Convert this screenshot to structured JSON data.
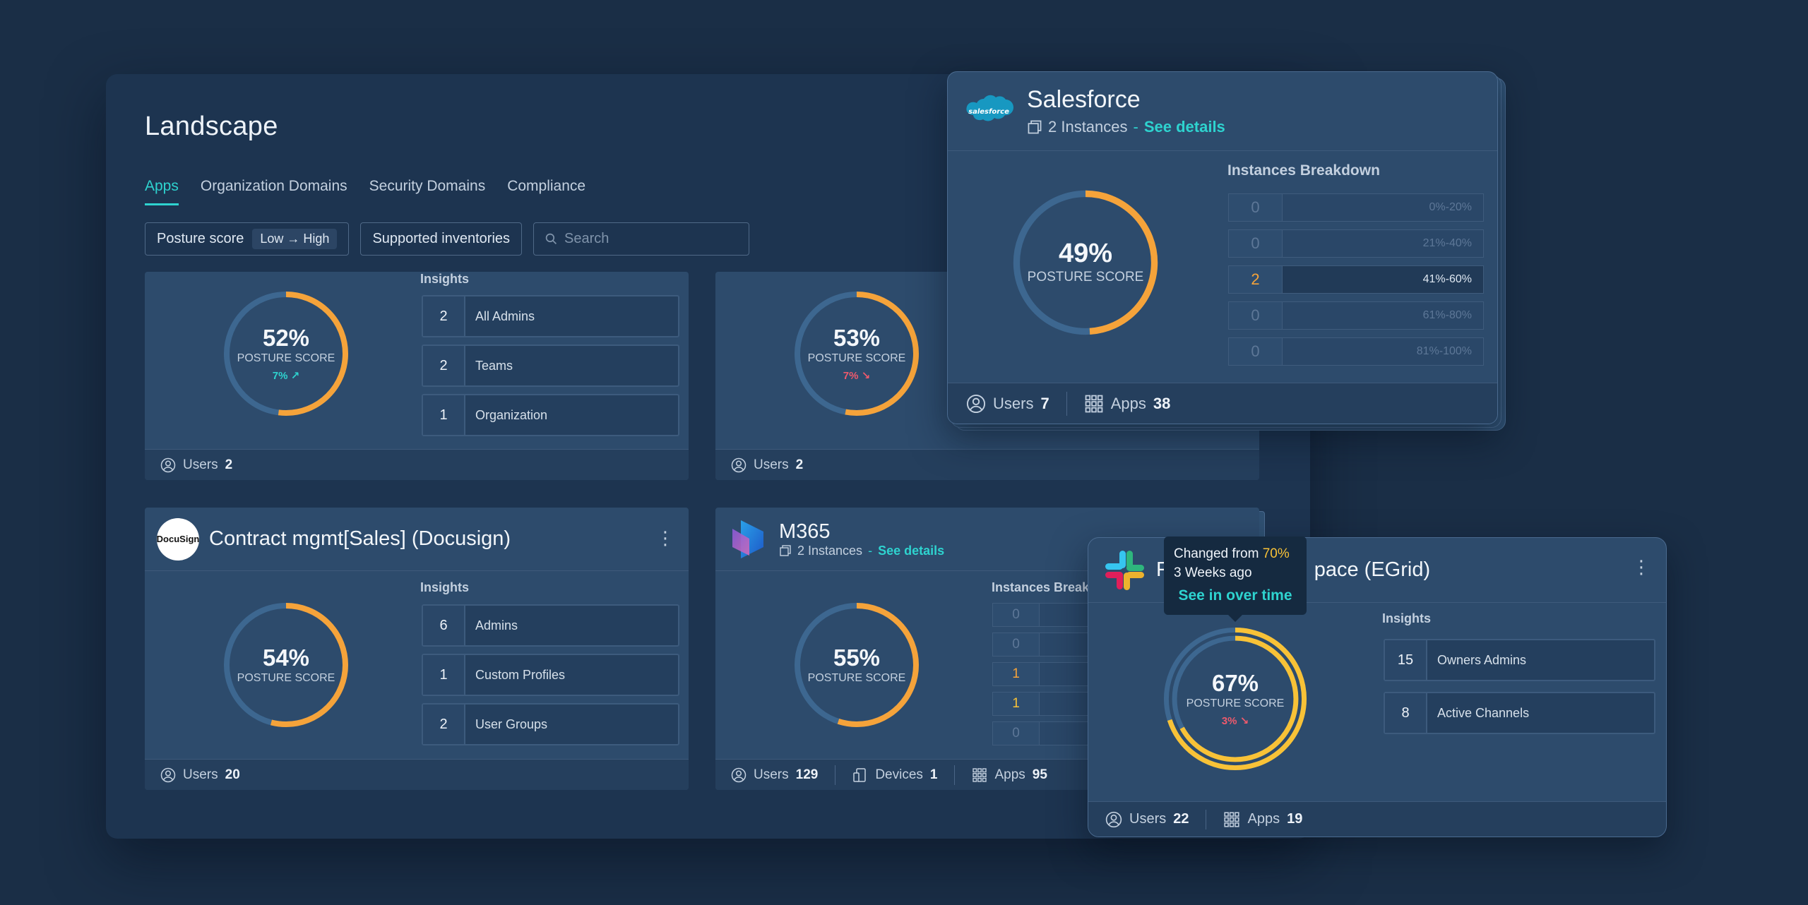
{
  "page": {
    "title": "Landscape",
    "tabs": [
      {
        "label": "Apps"
      },
      {
        "label": "Organization Domains"
      },
      {
        "label": "Security Domains"
      },
      {
        "label": "Compliance"
      }
    ],
    "filters": {
      "posture_label": "Posture score",
      "posture_chip": "Low → High",
      "supported": "Supported inventories",
      "search_placeholder": "Search"
    }
  },
  "colors": {
    "accent": "#2ed3cf",
    "gauge_track": "#3d6790",
    "gauge_orange": "#f5a33a",
    "gauge_yellow": "#f8c237",
    "delta_up": "#2ed3cf",
    "delta_down": "#ef5a6c"
  },
  "cards": {
    "c1": {
      "insights_title": "Insights",
      "score": 52,
      "pct": "52%",
      "label": "POSTURE SCORE",
      "delta": "7% ↗",
      "insights": [
        {
          "num": "2",
          "label": "All Admins"
        },
        {
          "num": "2",
          "label": "Teams"
        },
        {
          "num": "1",
          "label": "Organization"
        }
      ],
      "users_label": "Users",
      "users": "2"
    },
    "c2": {
      "score": 53,
      "pct": "53%",
      "label": "POSTURE SCORE",
      "delta": "7% ↘",
      "users_label": "Users",
      "users": "2"
    },
    "c3": {
      "title": "Contract mgmt[Sales] (Docusign)",
      "logo": "DocuSign",
      "insights_title": "Insights",
      "score": 54,
      "pct": "54%",
      "label": "POSTURE SCORE",
      "insights": [
        {
          "num": "6",
          "label": "Admins"
        },
        {
          "num": "1",
          "label": "Custom Profiles"
        },
        {
          "num": "2",
          "label": "User Groups"
        }
      ],
      "users_label": "Users",
      "users": "20"
    },
    "c4": {
      "title": "M365",
      "instances": "2 Instances",
      "dash": "-",
      "see_details": "See details",
      "breakdown_title": "Instances Breakdown",
      "score": 55,
      "pct": "55%",
      "label": "POSTURE SCORE",
      "breakdown": [
        "0",
        "0",
        "1",
        "1",
        "0"
      ],
      "users_label": "Users",
      "users": "129",
      "devices_label": "Devices",
      "devices": "1",
      "apps_label": "Apps",
      "apps": "95"
    },
    "salesforce": {
      "title": "Salesforce",
      "logo": "salesforce",
      "instances": "2 Instances",
      "dash": "-",
      "see_details": "See details",
      "breakdown_title": "Instances Breakdown",
      "score": 49,
      "pct": "49%",
      "label": "POSTURE SCORE",
      "breakdown": [
        {
          "num": "0",
          "range": "0%-20%"
        },
        {
          "num": "0",
          "range": "21%-40%"
        },
        {
          "num": "2",
          "range": "41%-60%"
        },
        {
          "num": "0",
          "range": "61%-80%"
        },
        {
          "num": "0",
          "range": "81%-100%"
        }
      ],
      "users_label": "Users",
      "users": "7",
      "apps_label": "Apps",
      "apps": "38"
    },
    "slack": {
      "title_left": "F",
      "title_right": "pace (EGrid)",
      "insights_title": "Insights",
      "score": 67,
      "prev_score": 70,
      "pct": "67%",
      "label": "POSTURE SCORE",
      "delta": "3% ↘",
      "insights": [
        {
          "num": "15",
          "label": "Owners Admins"
        },
        {
          "num": "8",
          "label": "Active Channels"
        }
      ],
      "tooltip": {
        "changed": "Changed from",
        "from": "70%",
        "ago": "3 Weeks ago",
        "link": "See in over time"
      },
      "users_label": "Users",
      "users": "22",
      "apps_label": "Apps",
      "apps": "19"
    }
  }
}
